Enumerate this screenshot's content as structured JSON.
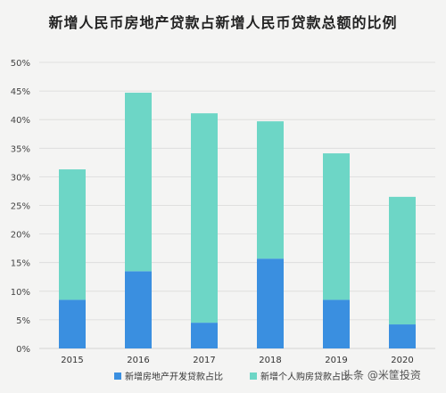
{
  "title": "新增人民币房地产贷款占新增人民币贷款总额的比例",
  "watermark": "头条 @米筐投资",
  "colors": {
    "development": "#3a8fe0",
    "mortgage": "#6dd6c6",
    "grid": "#d9d9d9"
  },
  "chart_data": {
    "type": "bar",
    "stacked": true,
    "categories": [
      "2015",
      "2016",
      "2017",
      "2018",
      "2019",
      "2020"
    ],
    "series": [
      {
        "name": "新增房地产开发贷款占比",
        "values": [
          8.5,
          13.5,
          4.5,
          15.7,
          8.5,
          4.2
        ]
      },
      {
        "name": "新增个人购房贷款占比",
        "values": [
          22.8,
          31.2,
          36.6,
          24.0,
          25.6,
          22.3
        ]
      }
    ],
    "ylim": [
      0,
      50
    ],
    "yticks": [
      "0%",
      "5%",
      "10%",
      "15%",
      "20%",
      "25%",
      "30%",
      "35%",
      "40%",
      "45%",
      "50%"
    ],
    "grid": true,
    "legend_position": "bottom",
    "xlabel": "",
    "ylabel": ""
  }
}
